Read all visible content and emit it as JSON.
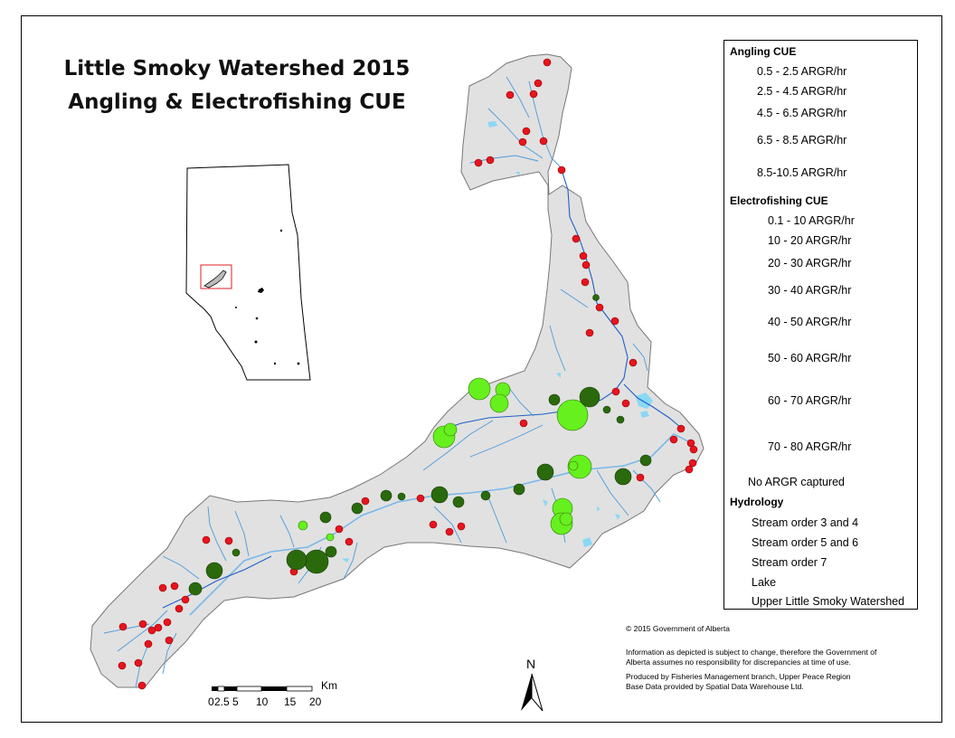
{
  "title": {
    "line1": "Little Smoky Watershed 2015",
    "line2": "Angling & Electrofishing CUE"
  },
  "legend": {
    "angling_heading": "Angling CUE",
    "angling_classes": [
      "0.5 - 2.5 ARGR/hr",
      "2.5 - 4.5 ARGR/hr",
      "4.5 - 6.5 ARGR/hr",
      "6.5 - 8.5 ARGR/hr",
      "8.5-10.5 ARGR/hr"
    ],
    "electro_heading": "Electrofishing CUE",
    "electro_classes": [
      "0.1 - 10 ARGR/hr",
      "10 - 20 ARGR/hr",
      "20 - 30 ARGR/hr",
      "30 - 40 ARGR/hr",
      "40 - 50 ARGR/hr",
      "50 - 60 ARGR/hr",
      "60 - 70 ARGR/hr",
      "70 - 80 ARGR/hr"
    ],
    "no_capture": "No ARGR captured",
    "hydrology_heading": "Hydrology",
    "hydro_items": [
      "Stream order 3 and 4",
      "Stream order 5 and 6",
      "Stream order 7",
      "Lake",
      "Upper Little Smoky Watershed"
    ]
  },
  "colors": {
    "angling": "#2b6a0c",
    "electrofishing": "#66f01e",
    "no_capture": "#e8141e",
    "stream_small": "#4a9bdc",
    "stream_mid": "#1f5fc8",
    "stream_large": "#7ab8ea",
    "lake": "#8ad8f4",
    "watershed": "#e1e1e1",
    "inset_box": "#e01f26"
  },
  "scale_bar": {
    "unit": "Km",
    "ticks": [
      "0",
      "2.5",
      "5",
      "10",
      "15",
      "20"
    ]
  },
  "north_arrow": "N",
  "credits": {
    "copyright": "© 2015 Government of Alberta",
    "lines": [
      "Information as depicted is subject to change, therefore the Government of",
      "Alberta assumes no responsibility for discrepancies at time of use.",
      "Produced by Fisheries Management branch, Upper Peace Region",
      "Base Data provided by Spatial Data Warehouse Ltd."
    ]
  }
}
